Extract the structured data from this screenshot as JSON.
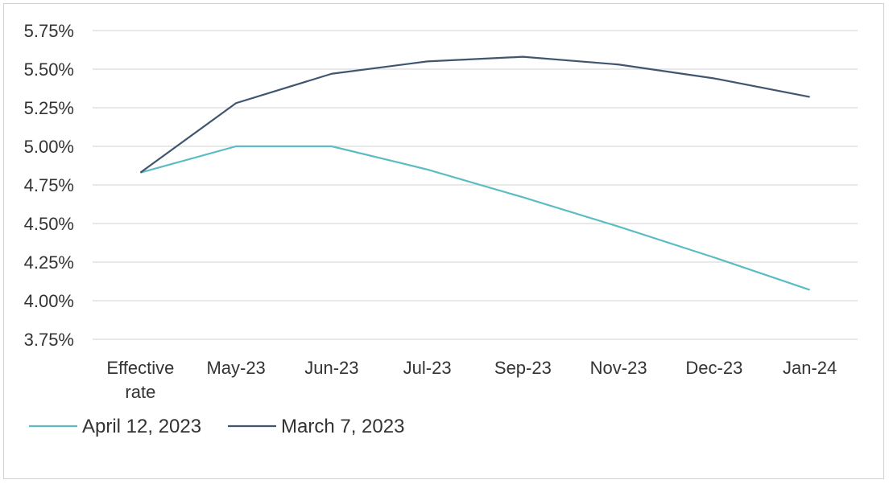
{
  "chart_data": {
    "type": "line",
    "title": "",
    "xlabel": "",
    "ylabel": "",
    "categories": [
      [
        "Effective",
        "rate"
      ],
      [
        "May-23"
      ],
      [
        "Jun-23"
      ],
      [
        "Jul-23"
      ],
      [
        "Sep-23"
      ],
      [
        "Nov-23"
      ],
      [
        "Dec-23"
      ],
      [
        "Jan-24"
      ]
    ],
    "ylim": [
      3.75,
      5.75
    ],
    "yticks": [
      "5.75%",
      "5.50%",
      "5.25%",
      "5.00%",
      "4.75%",
      "4.50%",
      "4.25%",
      "4.00%",
      "3.75%"
    ],
    "grid": true,
    "legend_position": "bottom-left",
    "series": [
      {
        "name": "April 12, 2023",
        "color": "#5bbcc4",
        "values": [
          4.83,
          5.0,
          5.0,
          4.85,
          4.67,
          4.48,
          4.28,
          4.07
        ]
      },
      {
        "name": "March 7, 2023",
        "color": "#3f566e",
        "values": [
          4.83,
          5.28,
          5.47,
          5.55,
          5.58,
          5.53,
          5.44,
          5.32
        ]
      }
    ]
  }
}
